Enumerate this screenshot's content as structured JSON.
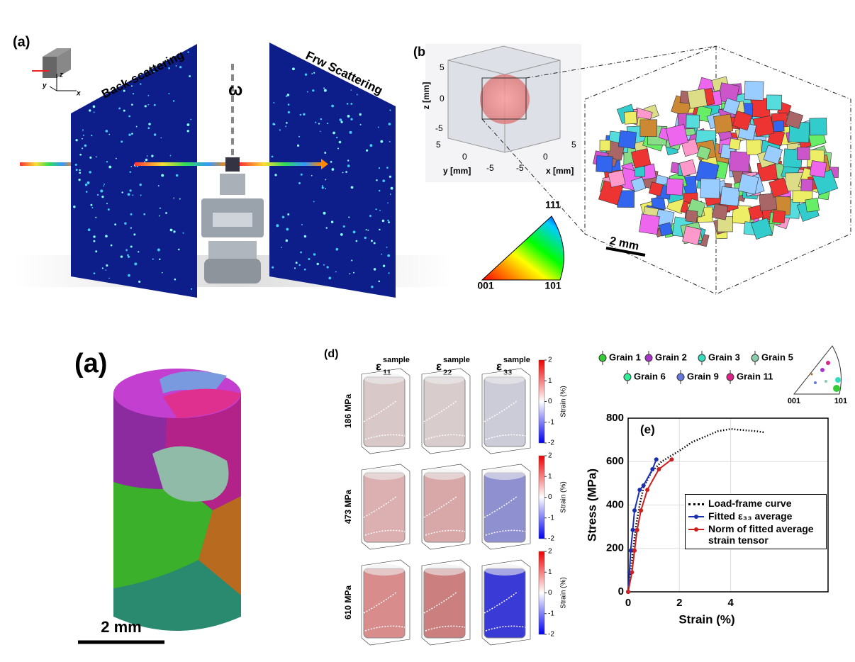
{
  "figure": {
    "top_a": {
      "label": "(a)",
      "left_screen": "Back-scattering",
      "right_screen": "Frw Scattering",
      "rotation": "ω",
      "axes": {
        "x": "x",
        "y": "y",
        "z": "z"
      }
    },
    "b": {
      "label": "(b)",
      "inset": {
        "zlabel": "z [mm]",
        "ylabel": "y [mm]",
        "xlabel": "x [mm]",
        "zticks": [
          5,
          0,
          -5
        ],
        "yticks": [
          5,
          0,
          -5
        ],
        "xticks": [
          -5,
          0,
          5
        ]
      },
      "ipf": {
        "top": "111",
        "left": "001",
        "right": "101"
      },
      "scalebar": "2 mm"
    },
    "bottom_a": {
      "label": "(a)",
      "scalebar": "2 mm"
    },
    "d": {
      "label": "(d)",
      "columns": [
        {
          "symbol": "ε",
          "sub": "11",
          "sup": "sample"
        },
        {
          "symbol": "ε",
          "sub": "22",
          "sup": "sample"
        },
        {
          "symbol": "ε",
          "sub": "33",
          "sup": "sample"
        }
      ],
      "rows": [
        "186 MPa",
        "473 MPa",
        "610 MPa"
      ],
      "colorbar": {
        "ticks": [
          2,
          1,
          0,
          -1,
          -2
        ],
        "label": "Strain (%)"
      }
    },
    "e": {
      "label": "(e)",
      "grains": [
        {
          "name": "Grain 1",
          "color": "#33cc33"
        },
        {
          "name": "Grain 2",
          "color": "#aa33cc"
        },
        {
          "name": "Grain 3",
          "color": "#33ddbb"
        },
        {
          "name": "Grain 5",
          "color": "#88ccaa"
        },
        {
          "name": "Grain 6",
          "color": "#33ee99"
        },
        {
          "name": "Grain 9",
          "color": "#6677dd"
        },
        {
          "name": "Grain 11",
          "color": "#dd2288"
        }
      ],
      "ipf": {
        "left": "001",
        "right": "101"
      }
    }
  },
  "chart_data": {
    "type": "line",
    "xlabel": "Strain (%)",
    "ylabel": "Stress (MPa)",
    "xlim": [
      0,
      7.8
    ],
    "xticks": [
      0,
      2,
      4
    ],
    "ylim": [
      0,
      800
    ],
    "yticks": [
      0,
      200,
      400,
      600,
      800
    ],
    "grid": true,
    "series": [
      {
        "name": "Load-frame curve",
        "color": "#000000",
        "style": "dotted",
        "x": [
          0,
          0.1,
          0.2,
          0.3,
          0.45,
          0.6,
          0.9,
          1.3,
          2,
          2.5,
          3,
          3.5,
          4,
          4.5,
          5,
          5.3
        ],
        "values": [
          0,
          100,
          200,
          300,
          400,
          480,
          550,
          600,
          650,
          690,
          715,
          740,
          750,
          745,
          740,
          735
        ]
      },
      {
        "name": "Fitted ε₃₃ average",
        "color": "#1a2fb0",
        "style": "solid",
        "x": [
          0,
          0.05,
          0.1,
          0.18,
          0.25,
          0.45,
          0.6,
          0.95,
          1.1
        ],
        "values": [
          0,
          90,
          190,
          285,
          375,
          470,
          490,
          565,
          610
        ]
      },
      {
        "name": "Norm of fitted average strain tensor",
        "color": "#cc1f1f",
        "style": "solid",
        "x": [
          0,
          0.15,
          0.25,
          0.35,
          0.5,
          0.75,
          1.2,
          1.7
        ],
        "values": [
          0,
          90,
          190,
          285,
          375,
          470,
          565,
          610
        ]
      }
    ]
  }
}
